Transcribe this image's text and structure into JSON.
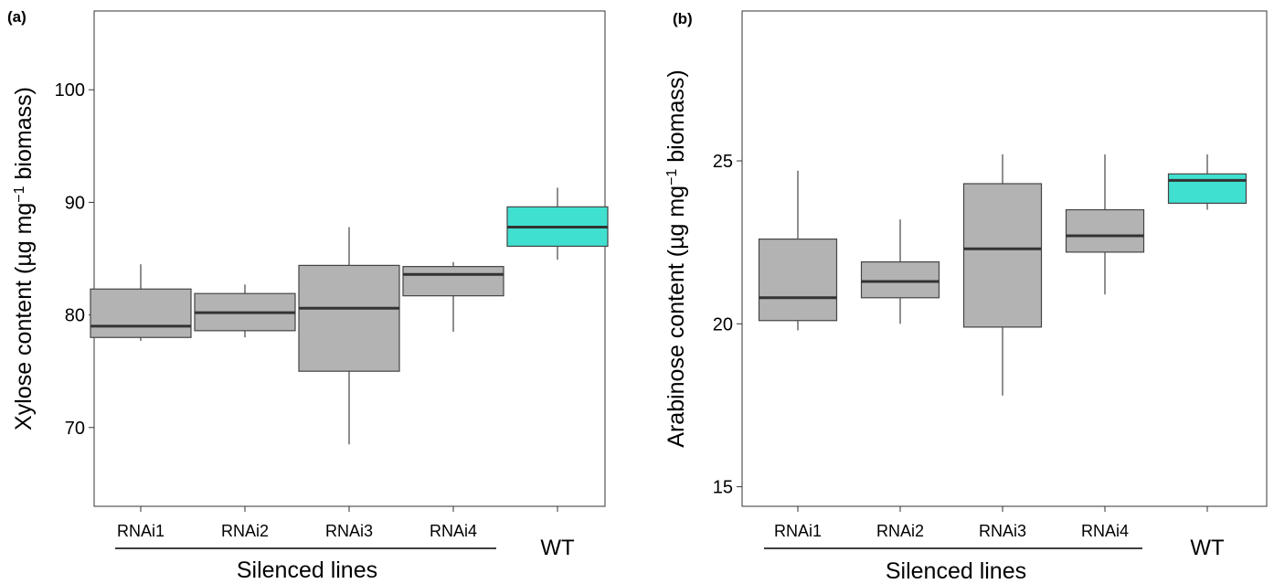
{
  "chart_data": [
    {
      "type": "box",
      "panel_label": "(a)",
      "ylabel_prefix": "Xylose content (µg mg",
      "ylabel_sup": "−1",
      "ylabel_suffix": " biomass)",
      "ylim": [
        63,
        107
      ],
      "yticks": [
        70,
        80,
        90,
        100
      ],
      "group_label": "Silenced lines",
      "categories": [
        "RNAi1",
        "RNAi2",
        "RNAi3",
        "RNAi4",
        "WT"
      ],
      "boxes": [
        {
          "name": "RNAi1",
          "min": 77.7,
          "q1": 78.0,
          "median": 79.0,
          "q3": 82.3,
          "max": 84.5,
          "color": "#b3b3b3"
        },
        {
          "name": "RNAi2",
          "min": 78.0,
          "q1": 78.6,
          "median": 80.2,
          "q3": 81.9,
          "max": 82.7,
          "color": "#b3b3b3"
        },
        {
          "name": "RNAi3",
          "min": 68.5,
          "q1": 75.0,
          "median": 80.6,
          "q3": 84.4,
          "max": 87.8,
          "color": "#b3b3b3"
        },
        {
          "name": "RNAi4",
          "min": 78.5,
          "q1": 81.7,
          "median": 83.6,
          "q3": 84.3,
          "max": 84.7,
          "color": "#b3b3b3"
        },
        {
          "name": "WT",
          "min": 84.9,
          "q1": 86.1,
          "median": 87.8,
          "q3": 89.6,
          "max": 91.3,
          "color": "#40e0d0"
        }
      ]
    },
    {
      "type": "box",
      "panel_label": "(b)",
      "ylabel_prefix": "Arabinose content (µg mg",
      "ylabel_sup": "−1",
      "ylabel_suffix": " biomass)",
      "ylim": [
        14.4,
        29.6
      ],
      "yticks": [
        15,
        20,
        25
      ],
      "group_label": "Silenced lines",
      "categories": [
        "RNAi1",
        "RNAi2",
        "RNAi3",
        "RNAi4",
        "WT"
      ],
      "boxes": [
        {
          "name": "RNAi1",
          "min": 19.8,
          "q1": 20.1,
          "median": 20.8,
          "q3": 22.6,
          "max": 24.7,
          "color": "#b3b3b3"
        },
        {
          "name": "RNAi2",
          "min": 20.0,
          "q1": 20.8,
          "median": 21.3,
          "q3": 21.9,
          "max": 23.2,
          "color": "#b3b3b3"
        },
        {
          "name": "RNAi3",
          "min": 17.8,
          "q1": 19.9,
          "median": 22.3,
          "q3": 24.3,
          "max": 25.2,
          "color": "#b3b3b3"
        },
        {
          "name": "RNAi4",
          "min": 20.9,
          "q1": 22.2,
          "median": 22.7,
          "q3": 23.5,
          "max": 25.2,
          "color": "#b3b3b3"
        },
        {
          "name": "WT",
          "min": 23.5,
          "q1": 23.7,
          "median": 24.4,
          "q3": 24.6,
          "max": 25.2,
          "color": "#40e0d0"
        }
      ]
    }
  ]
}
